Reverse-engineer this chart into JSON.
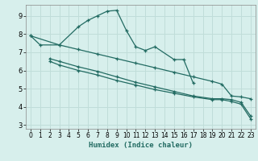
{
  "xlabel": "Humidex (Indice chaleur)",
  "xlim": [
    -0.5,
    23.5
  ],
  "ylim": [
    2.8,
    9.6
  ],
  "yticks": [
    3,
    4,
    5,
    6,
    7,
    8,
    9
  ],
  "xticks": [
    0,
    1,
    2,
    3,
    4,
    5,
    6,
    7,
    8,
    9,
    10,
    11,
    12,
    13,
    14,
    15,
    16,
    17,
    18,
    19,
    20,
    21,
    22,
    23
  ],
  "bg_color": "#d7efec",
  "grid_color": "#c0ddd9",
  "line_color": "#226b62",
  "lines": [
    {
      "x": [
        0,
        1,
        3,
        5,
        6,
        7,
        8,
        9,
        10,
        11,
        12,
        13,
        15,
        16,
        17
      ],
      "y": [
        7.9,
        7.4,
        7.4,
        8.4,
        8.75,
        9.0,
        9.25,
        9.3,
        8.2,
        7.3,
        7.1,
        7.3,
        6.6,
        6.6,
        5.3
      ]
    },
    {
      "x": [
        0,
        3,
        5,
        7,
        9,
        11,
        13,
        15,
        17,
        19,
        20,
        21,
        22,
        23
      ],
      "y": [
        7.9,
        7.4,
        7.15,
        6.9,
        6.65,
        6.4,
        6.15,
        5.9,
        5.65,
        5.4,
        5.25,
        4.6,
        4.55,
        4.45
      ]
    },
    {
      "x": [
        2,
        3,
        5,
        7,
        9,
        11,
        13,
        15,
        17,
        19,
        20,
        21,
        22,
        23
      ],
      "y": [
        6.65,
        6.5,
        6.2,
        5.95,
        5.65,
        5.35,
        5.1,
        4.85,
        4.6,
        4.45,
        4.45,
        4.4,
        4.25,
        3.5
      ]
    },
    {
      "x": [
        2,
        3,
        5,
        7,
        9,
        11,
        13,
        15,
        17,
        19,
        20,
        21,
        22,
        23
      ],
      "y": [
        6.5,
        6.3,
        6.0,
        5.75,
        5.45,
        5.2,
        4.95,
        4.75,
        4.55,
        4.4,
        4.4,
        4.3,
        4.15,
        3.35
      ]
    }
  ],
  "marker": "+",
  "markersize": 3.5,
  "linewidth": 0.9
}
